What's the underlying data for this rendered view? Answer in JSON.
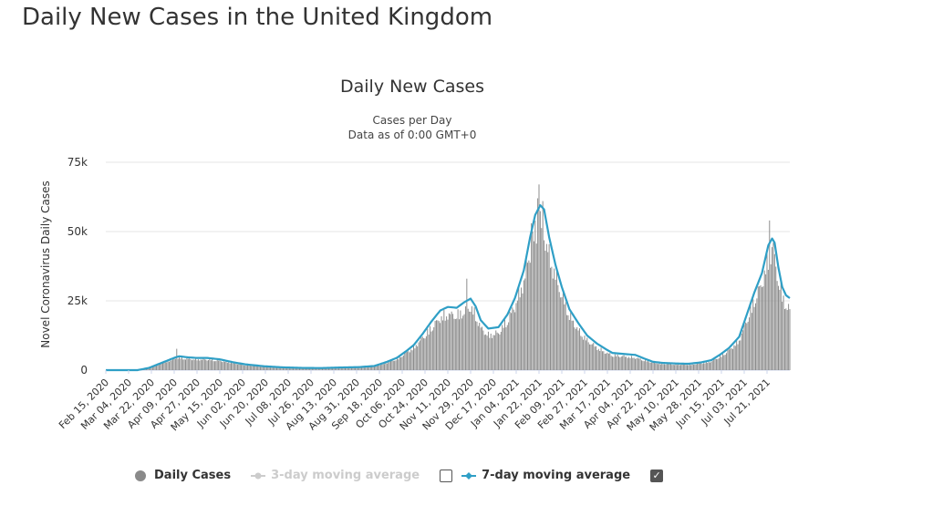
{
  "page": {
    "heading": "Daily New Cases in the United Kingdom"
  },
  "chart_data": {
    "type": "bar",
    "title": "Daily New Cases",
    "subtitle_lines": [
      "Cases per Day",
      "Data as of 0:00 GMT+0"
    ],
    "xlabel": "",
    "ylabel": "Novel Coronavirus Daily Cases",
    "ylim": [
      0,
      75000
    ],
    "y_ticks": [
      0,
      25000,
      50000,
      75000
    ],
    "y_tick_labels": [
      "0",
      "25k",
      "50k",
      "75k"
    ],
    "x_tick_labels": [
      "Feb 15, 2020",
      "Mar 04, 2020",
      "Mar 22, 2020",
      "Apr 09, 2020",
      "Apr 27, 2020",
      "May 15, 2020",
      "Jun 02, 2020",
      "Jun 20, 2020",
      "Jul 08, 2020",
      "Jul 26, 2020",
      "Aug 13, 2020",
      "Aug 31, 2020",
      "Sep 18, 2020",
      "Oct 06, 2020",
      "Oct 24, 2020",
      "Nov 11, 2020",
      "Nov 29, 2020",
      "Dec 17, 2020",
      "Jan 04, 2021",
      "Jan 22, 2021",
      "Feb 09, 2021",
      "Feb 27, 2021",
      "Mar 17, 2021",
      "Apr 04, 2021",
      "Apr 22, 2021",
      "May 10, 2021",
      "May 28, 2021",
      "Jun 15, 2021",
      "Jul 03, 2021",
      "Jul 21, 2021"
    ],
    "x_tick_interval_days": 18,
    "series": [
      {
        "name": "Daily Cases",
        "kind": "bar",
        "color": "#8a8a8a",
        "anchors": [
          [
            0,
            0
          ],
          [
            25,
            0
          ],
          [
            34,
            1000
          ],
          [
            45,
            3000
          ],
          [
            55,
            4600
          ],
          [
            58,
            5000
          ],
          [
            65,
            4500
          ],
          [
            72,
            4300
          ],
          [
            80,
            4300
          ],
          [
            90,
            3800
          ],
          [
            100,
            2900
          ],
          [
            110,
            2000
          ],
          [
            125,
            1400
          ],
          [
            140,
            1000
          ],
          [
            155,
            800
          ],
          [
            170,
            700
          ],
          [
            185,
            900
          ],
          [
            200,
            1000
          ],
          [
            212,
            1500
          ],
          [
            222,
            3000
          ],
          [
            230,
            4500
          ],
          [
            237,
            7000
          ],
          [
            243,
            9000
          ],
          [
            250,
            13000
          ],
          [
            257,
            17000
          ],
          [
            264,
            21000
          ],
          [
            270,
            22500
          ],
          [
            277,
            22000
          ],
          [
            283,
            23500
          ],
          [
            288,
            25500
          ],
          [
            292,
            22000
          ],
          [
            296,
            17000
          ],
          [
            302,
            14000
          ],
          [
            310,
            15000
          ],
          [
            317,
            20000
          ],
          [
            323,
            26000
          ],
          [
            330,
            36000
          ],
          [
            335,
            48000
          ],
          [
            339,
            56000
          ],
          [
            343,
            59000
          ],
          [
            346,
            55000
          ],
          [
            350,
            46000
          ],
          [
            355,
            38000
          ],
          [
            360,
            30000
          ],
          [
            366,
            22000
          ],
          [
            373,
            16000
          ],
          [
            380,
            12000
          ],
          [
            388,
            9000
          ],
          [
            395,
            7000
          ],
          [
            400,
            6000
          ],
          [
            410,
            5500
          ],
          [
            418,
            5000
          ],
          [
            425,
            4000
          ],
          [
            432,
            3000
          ],
          [
            440,
            2500
          ],
          [
            450,
            2300
          ],
          [
            460,
            2200
          ],
          [
            470,
            2700
          ],
          [
            478,
            3500
          ],
          [
            485,
            5500
          ],
          [
            492,
            8000
          ],
          [
            500,
            12000
          ],
          [
            506,
            20000
          ],
          [
            512,
            28000
          ],
          [
            518,
            35000
          ],
          [
            523,
            45000
          ],
          [
            526,
            48000
          ],
          [
            528,
            44000
          ],
          [
            531,
            36000
          ],
          [
            534,
            30000
          ],
          [
            537,
            26000
          ],
          [
            540,
            24000
          ]
        ],
        "spikes": [
          [
            56,
            7700
          ],
          [
            285,
            33000
          ],
          [
            336,
            53000
          ],
          [
            341,
            62000
          ],
          [
            342,
            67000
          ],
          [
            345,
            61000
          ],
          [
            524,
            54000
          ],
          [
            527,
            46000
          ],
          [
            540,
            22000
          ]
        ]
      },
      {
        "name": "3-day moving average",
        "kind": "line",
        "visible": false,
        "color": "#cccccc"
      },
      {
        "name": "7-day moving average",
        "kind": "line",
        "visible": true,
        "color": "#2f9fc6",
        "anchors": [
          [
            0,
            0
          ],
          [
            25,
            0
          ],
          [
            34,
            800
          ],
          [
            45,
            2800
          ],
          [
            55,
            4600
          ],
          [
            58,
            5000
          ],
          [
            65,
            4600
          ],
          [
            72,
            4400
          ],
          [
            80,
            4400
          ],
          [
            90,
            3900
          ],
          [
            100,
            2900
          ],
          [
            110,
            2100
          ],
          [
            125,
            1400
          ],
          [
            140,
            1000
          ],
          [
            155,
            800
          ],
          [
            170,
            750
          ],
          [
            185,
            950
          ],
          [
            200,
            1100
          ],
          [
            212,
            1500
          ],
          [
            222,
            3000
          ],
          [
            230,
            4500
          ],
          [
            237,
            6800
          ],
          [
            243,
            9000
          ],
          [
            250,
            13000
          ],
          [
            257,
            17500
          ],
          [
            264,
            21500
          ],
          [
            270,
            22800
          ],
          [
            277,
            22500
          ],
          [
            283,
            24500
          ],
          [
            288,
            25800
          ],
          [
            292,
            23000
          ],
          [
            296,
            18000
          ],
          [
            302,
            15000
          ],
          [
            310,
            15500
          ],
          [
            317,
            20000
          ],
          [
            323,
            26000
          ],
          [
            330,
            36000
          ],
          [
            335,
            48000
          ],
          [
            339,
            56000
          ],
          [
            343,
            59500
          ],
          [
            346,
            58000
          ],
          [
            350,
            48000
          ],
          [
            355,
            38000
          ],
          [
            360,
            30000
          ],
          [
            366,
            22000
          ],
          [
            373,
            17000
          ],
          [
            380,
            12500
          ],
          [
            388,
            9500
          ],
          [
            395,
            7500
          ],
          [
            400,
            6200
          ],
          [
            410,
            5800
          ],
          [
            418,
            5500
          ],
          [
            425,
            4200
          ],
          [
            432,
            3000
          ],
          [
            440,
            2600
          ],
          [
            450,
            2400
          ],
          [
            460,
            2300
          ],
          [
            470,
            2800
          ],
          [
            478,
            3600
          ],
          [
            485,
            5600
          ],
          [
            492,
            8000
          ],
          [
            500,
            12000
          ],
          [
            506,
            20000
          ],
          [
            512,
            28000
          ],
          [
            518,
            35000
          ],
          [
            523,
            45000
          ],
          [
            526,
            47500
          ],
          [
            528,
            46000
          ],
          [
            531,
            37000
          ],
          [
            534,
            30000
          ],
          [
            537,
            27000
          ],
          [
            540,
            26000
          ]
        ]
      }
    ],
    "legend": [
      {
        "label": "Daily Cases",
        "color": "#8a8a8a",
        "active": true
      },
      {
        "label": "3-day moving average",
        "color": "#cccccc",
        "active": false,
        "checked": false
      },
      {
        "label": "7-day moving average",
        "color": "#2f9fc6",
        "active": true,
        "checked": true
      }
    ]
  }
}
